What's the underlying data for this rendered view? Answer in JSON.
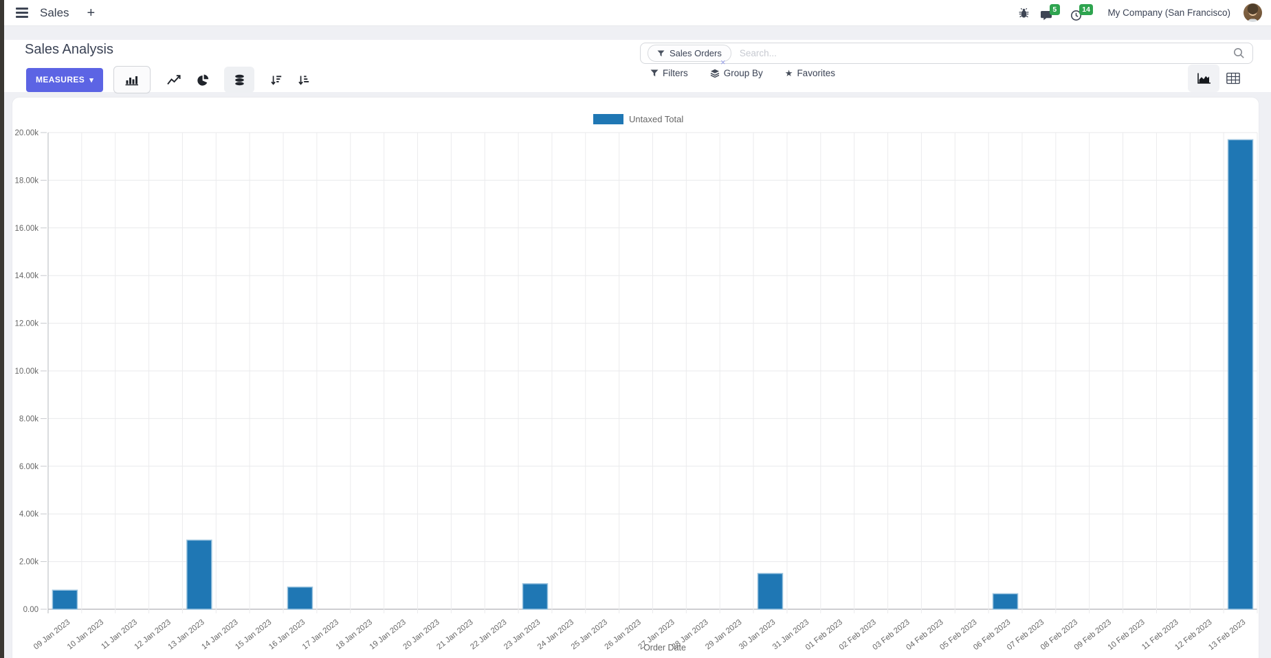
{
  "colors": {
    "bar_blue": "#1f77b4",
    "bar_border": "#98c2de",
    "accent_indigo": "#5c64e4",
    "badge_green": "#2ea44f"
  },
  "icons": {
    "star": "★",
    "caret_down": "▾",
    "plus": "+",
    "close": "×"
  },
  "navbar": {
    "app_name": "Sales",
    "messages_badge": "5",
    "activities_badge": "14",
    "company": "My Company (San Francisco)"
  },
  "control_panel": {
    "title": "Sales Analysis",
    "measures_label": "MEASURES",
    "filters_label": "Filters",
    "group_by_label": "Group By",
    "favorites_label": "Favorites"
  },
  "search": {
    "facet": "Sales Orders",
    "placeholder": "Search..."
  },
  "chart_data": {
    "type": "bar",
    "title": "",
    "xlabel": "Order Date",
    "ylabel": "",
    "ylim": [
      0,
      20000
    ],
    "ytick_step": 2000,
    "y_ticks": [
      "0.00",
      "2.00k",
      "4.00k",
      "6.00k",
      "8.00k",
      "10.00k",
      "12.00k",
      "14.00k",
      "16.00k",
      "18.00k",
      "20.00k"
    ],
    "grid": true,
    "legend_position": "top-center",
    "categories": [
      "09 Jan 2023",
      "10 Jan 2023",
      "11 Jan 2023",
      "12 Jan 2023",
      "13 Jan 2023",
      "14 Jan 2023",
      "15 Jan 2023",
      "16 Jan 2023",
      "17 Jan 2023",
      "18 Jan 2023",
      "19 Jan 2023",
      "20 Jan 2023",
      "21 Jan 2023",
      "22 Jan 2023",
      "23 Jan 2023",
      "24 Jan 2023",
      "25 Jan 2023",
      "26 Jan 2023",
      "27 Jan 2023",
      "28 Jan 2023",
      "29 Jan 2023",
      "30 Jan 2023",
      "31 Jan 2023",
      "01 Feb 2023",
      "02 Feb 2023",
      "03 Feb 2023",
      "04 Feb 2023",
      "05 Feb 2023",
      "06 Feb 2023",
      "07 Feb 2023",
      "08 Feb 2023",
      "09 Feb 2023",
      "10 Feb 2023",
      "11 Feb 2023",
      "12 Feb 2023",
      "13 Feb 2023"
    ],
    "series": [
      {
        "name": "Untaxed Total",
        "color": "#1f77b4",
        "values": [
          800,
          0,
          0,
          0,
          2900,
          0,
          0,
          930,
          0,
          0,
          0,
          0,
          0,
          0,
          1070,
          0,
          0,
          0,
          0,
          0,
          0,
          1500,
          0,
          0,
          0,
          0,
          0,
          0,
          650,
          0,
          0,
          0,
          0,
          0,
          0,
          19700
        ]
      }
    ]
  }
}
